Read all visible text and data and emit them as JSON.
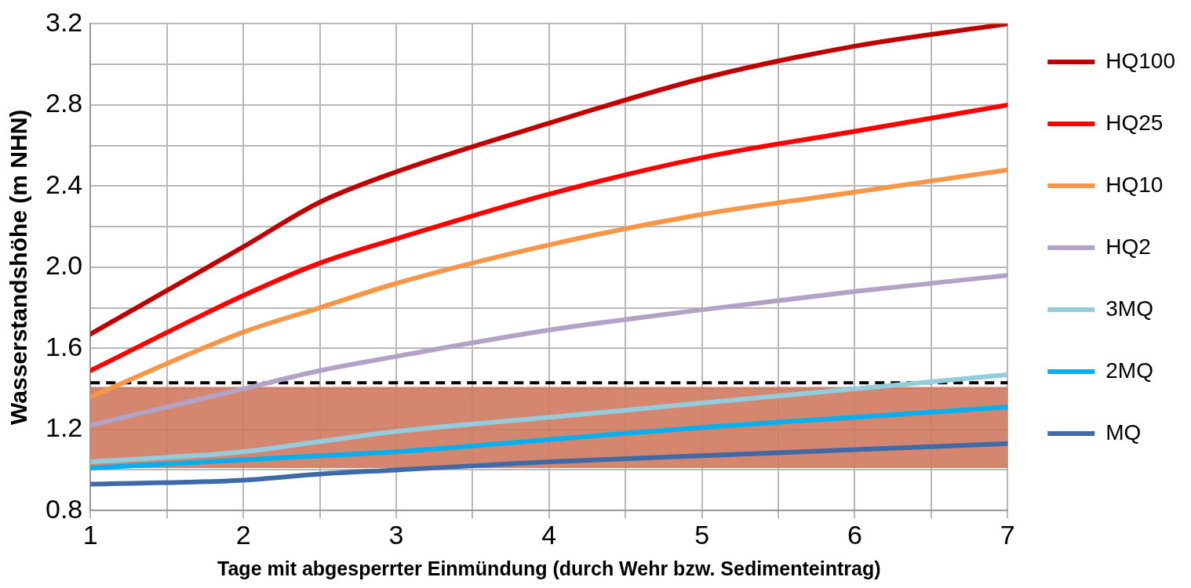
{
  "chart_data": {
    "type": "line",
    "xlabel": "Tage mit abgesperrter Einmündung (durch Wehr bzw. Sedimenteintrag)",
    "ylabel": "Wasserstandshöhe (m NHN)",
    "x": [
      1,
      2,
      2.5,
      3,
      4,
      5,
      6,
      7
    ],
    "series": [
      {
        "name": "HQ100",
        "color": "#c00000",
        "values": [
          1.67,
          2.1,
          2.32,
          2.47,
          2.71,
          2.93,
          3.09,
          3.2
        ]
      },
      {
        "name": "HQ25",
        "color": "#ff0000",
        "values": [
          1.49,
          1.86,
          2.02,
          2.14,
          2.36,
          2.54,
          2.67,
          2.8
        ]
      },
      {
        "name": "HQ10",
        "color": "#f79646",
        "values": [
          1.36,
          1.68,
          1.8,
          1.92,
          2.11,
          2.26,
          2.37,
          2.48
        ]
      },
      {
        "name": "HQ2",
        "color": "#b3a2c7",
        "values": [
          1.22,
          1.4,
          1.49,
          1.56,
          1.69,
          1.79,
          1.88,
          1.96
        ]
      },
      {
        "name": "3MQ",
        "color": "#93cddd",
        "values": [
          1.04,
          1.09,
          1.14,
          1.19,
          1.26,
          1.33,
          1.4,
          1.47
        ]
      },
      {
        "name": "2MQ",
        "color": "#00b0f0",
        "values": [
          1.01,
          1.05,
          1.07,
          1.09,
          1.15,
          1.21,
          1.26,
          1.31
        ]
      },
      {
        "name": "MQ",
        "color": "#3e6aa8",
        "values": [
          0.93,
          0.95,
          0.98,
          1.0,
          1.04,
          1.07,
          1.1,
          1.13
        ]
      }
    ],
    "xlim": [
      1,
      7
    ],
    "xticks": [
      1,
      {
        "value": 1.5,
        "label": null
      },
      2,
      {
        "value": 2.5,
        "label": null
      },
      3,
      {
        "value": 3.5,
        "label": null
      },
      4,
      {
        "value": 4.5,
        "label": null
      },
      5,
      {
        "value": 5.5,
        "label": null
      },
      6,
      {
        "value": 6.5,
        "label": null
      },
      7
    ],
    "ylim": [
      0.8,
      3.2
    ],
    "yticks": [
      {
        "value": 0.8,
        "label": "0.8"
      },
      {
        "value": 1.0,
        "label": null
      },
      1.2,
      {
        "value": 1.4,
        "label": null
      },
      {
        "value": 1.6,
        "label": "1.6"
      },
      {
        "value": 1.8,
        "label": null
      },
      {
        "value": 2.0,
        "label": "2.0"
      },
      {
        "value": 2.2,
        "label": null
      },
      2.4,
      {
        "value": 2.6,
        "label": null
      },
      2.8,
      {
        "value": 3.0,
        "label": null
      },
      3.2
    ],
    "ref_lines": [
      {
        "axis": "y",
        "value": 1.43,
        "color": "#000000",
        "line_style": "dashed"
      }
    ],
    "bands": [
      {
        "axis": "y",
        "from": 1.01,
        "to": 1.41,
        "color": "#cf7a5e"
      }
    ],
    "grid": true,
    "legend": "right",
    "marker": "none",
    "line_style": "solid"
  }
}
